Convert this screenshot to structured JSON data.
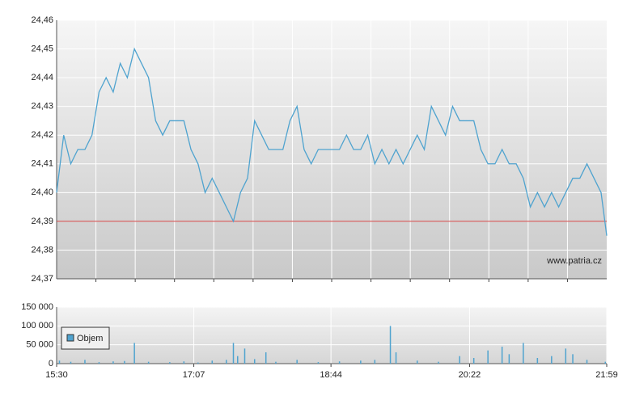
{
  "chart_data": [
    {
      "type": "line",
      "x": [
        "15:30",
        "15:35",
        "15:40",
        "15:45",
        "15:50",
        "15:55",
        "16:00",
        "16:05",
        "16:10",
        "16:15",
        "16:20",
        "16:25",
        "16:30",
        "16:35",
        "16:40",
        "16:45",
        "16:50",
        "16:55",
        "17:00",
        "17:05",
        "17:10",
        "17:15",
        "17:20",
        "17:25",
        "17:30",
        "17:35",
        "17:40",
        "17:45",
        "17:50",
        "17:55",
        "18:00",
        "18:05",
        "18:10",
        "18:15",
        "18:20",
        "18:25",
        "18:30",
        "18:35",
        "18:40",
        "18:45",
        "18:50",
        "18:55",
        "19:00",
        "19:05",
        "19:10",
        "19:15",
        "19:20",
        "19:25",
        "19:30",
        "19:35",
        "19:40",
        "19:45",
        "19:50",
        "19:55",
        "20:00",
        "20:05",
        "20:10",
        "20:15",
        "20:20",
        "20:25",
        "20:30",
        "20:35",
        "20:40",
        "20:45",
        "20:50",
        "20:55",
        "21:00",
        "21:05",
        "21:10",
        "21:15",
        "21:20",
        "21:25",
        "21:30",
        "21:35",
        "21:40",
        "21:45",
        "21:50",
        "21:55",
        "21:59"
      ],
      "series": [
        {
          "color": "#4fa3cf",
          "values": [
            24.4,
            24.42,
            24.41,
            24.415,
            24.415,
            24.42,
            24.435,
            24.44,
            24.435,
            24.445,
            24.44,
            24.45,
            24.445,
            24.44,
            24.425,
            24.42,
            24.425,
            24.425,
            24.425,
            24.415,
            24.41,
            24.4,
            24.405,
            24.4,
            24.395,
            24.39,
            24.4,
            24.405,
            24.425,
            24.42,
            24.415,
            24.415,
            24.415,
            24.425,
            24.43,
            24.415,
            24.41,
            24.415,
            24.415,
            24.415,
            24.415,
            24.42,
            24.415,
            24.415,
            24.42,
            24.41,
            24.415,
            24.41,
            24.415,
            24.41,
            24.415,
            24.42,
            24.415,
            24.43,
            24.425,
            24.42,
            24.43,
            24.425,
            24.425,
            24.425,
            24.415,
            24.41,
            24.41,
            24.415,
            24.41,
            24.41,
            24.405,
            24.395,
            24.4,
            24.395,
            24.4,
            24.395,
            24.4,
            24.405,
            24.405,
            24.41,
            24.405,
            24.4,
            24.385
          ]
        }
      ],
      "reference_line": {
        "value": 24.39,
        "color": "#d04040"
      },
      "xlim": [
        "15:30",
        "21:59"
      ],
      "ylim": [
        24.37,
        24.46
      ],
      "yticks": [
        {
          "value": 24.37,
          "label": "24,37"
        },
        {
          "value": 24.38,
          "label": "24,38"
        },
        {
          "value": 24.39,
          "label": "24,39"
        },
        {
          "value": 24.4,
          "label": "24,40"
        },
        {
          "value": 24.41,
          "label": "24,41"
        },
        {
          "value": 24.42,
          "label": "24,42"
        },
        {
          "value": 24.43,
          "label": "24,43"
        },
        {
          "value": 24.44,
          "label": "24,44"
        },
        {
          "value": 24.45,
          "label": "24,45"
        },
        {
          "value": 24.46,
          "label": "24,46"
        }
      ],
      "grid": true,
      "annotation": "www.patria.cz"
    },
    {
      "type": "bar",
      "x": [
        "15:32",
        "15:40",
        "15:50",
        "16:00",
        "16:10",
        "16:18",
        "16:25",
        "16:35",
        "16:50",
        "17:00",
        "17:10",
        "17:20",
        "17:30",
        "17:35",
        "17:38",
        "17:43",
        "17:50",
        "17:58",
        "18:05",
        "18:20",
        "18:35",
        "18:50",
        "19:05",
        "19:15",
        "19:26",
        "19:30",
        "19:45",
        "20:00",
        "20:15",
        "20:25",
        "20:35",
        "20:45",
        "20:50",
        "21:00",
        "21:10",
        "21:20",
        "21:30",
        "21:35",
        "21:45",
        "21:58"
      ],
      "series": [
        {
          "name": "Objem",
          "color": "#4fa3cf",
          "values": [
            8000,
            5000,
            10000,
            4000,
            6000,
            7000,
            55000,
            5000,
            4000,
            6000,
            3000,
            8000,
            10000,
            55000,
            20000,
            40000,
            12000,
            30000,
            5000,
            10000,
            4000,
            6000,
            8000,
            10000,
            100000,
            30000,
            8000,
            5000,
            20000,
            15000,
            35000,
            45000,
            25000,
            55000,
            15000,
            20000,
            40000,
            25000,
            10000,
            5000
          ]
        }
      ],
      "xlim": [
        "15:30",
        "21:59"
      ],
      "xticks": [
        "15:30",
        "17:07",
        "18:44",
        "20:22",
        "21:59"
      ],
      "ylim": [
        0,
        150000
      ],
      "yticks": [
        0,
        {
          "value": 50000,
          "label": "50 000"
        },
        {
          "value": 100000,
          "label": "100 000"
        },
        {
          "value": 150000,
          "label": "150 000"
        }
      ],
      "grid": true
    }
  ]
}
